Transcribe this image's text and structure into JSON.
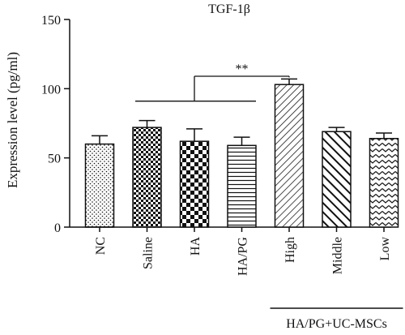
{
  "chart_data": {
    "type": "bar",
    "title": "TGF-1β",
    "ylabel": "Expression level (pg/ml)",
    "xlabel": "",
    "ylim": [
      0,
      150
    ],
    "yticks": [
      0,
      50,
      100,
      150
    ],
    "categories": [
      "NC",
      "Saline",
      "HA",
      "HA/PG",
      "High",
      "Middle",
      "Low"
    ],
    "values": [
      60,
      72,
      62,
      59,
      103,
      69,
      64
    ],
    "errors": [
      6,
      5,
      9,
      6,
      4,
      3,
      4
    ],
    "patterns": [
      "dots",
      "checker-small",
      "checker-large",
      "horizontal-lines",
      "diagonal-hatch",
      "diagonal-thick",
      "chevron"
    ],
    "group_label": "HA/PG+UC-MSCs",
    "grouped_categories": [
      "High",
      "Middle",
      "Low"
    ],
    "significance": {
      "label": "**",
      "compare": [
        "Saline",
        "HA/PG"
      ],
      "against": "High"
    },
    "colors": {
      "ink": "#111111",
      "bar_fill": "#ffffff"
    }
  }
}
